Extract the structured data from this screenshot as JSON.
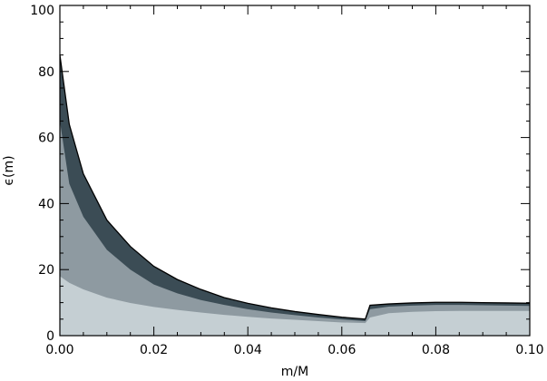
{
  "chart_data": {
    "type": "area",
    "xlabel": "m/M",
    "ylabel": "ϵ(m)",
    "xlim": [
      0,
      0.1
    ],
    "ylim": [
      0,
      100
    ],
    "x_ticks": [
      "0.00",
      "0.02",
      "0.04",
      "0.06",
      "0.08",
      "0.10"
    ],
    "x_tick_values": [
      0,
      0.02,
      0.04,
      0.06,
      0.08,
      0.1
    ],
    "y_ticks": [
      "0",
      "20",
      "40",
      "60",
      "80",
      "100"
    ],
    "y_tick_values": [
      0,
      20,
      40,
      60,
      80,
      100
    ],
    "grid": false,
    "x": [
      0,
      0.002,
      0.005,
      0.01,
      0.015,
      0.02,
      0.025,
      0.03,
      0.035,
      0.04,
      0.045,
      0.05,
      0.055,
      0.06,
      0.065,
      0.066,
      0.07,
      0.075,
      0.08,
      0.085,
      0.09,
      0.095,
      0.1
    ],
    "series": [
      {
        "color": "#3b4c55",
        "values": [
          85,
          64,
          49,
          35,
          27,
          21,
          17,
          14,
          11.5,
          9.8,
          8.4,
          7.3,
          6.4,
          5.6,
          5.0,
          9.2,
          9.6,
          9.9,
          10.1,
          10.1,
          10.0,
          9.9,
          9.8
        ]
      },
      {
        "color": "#8e9aa1",
        "values": [
          65,
          46,
          36,
          26,
          20,
          15.5,
          12.8,
          10.8,
          9.3,
          8.0,
          7.0,
          6.2,
          5.5,
          4.9,
          4.4,
          8.0,
          8.8,
          9.1,
          9.3,
          9.3,
          9.2,
          9.1,
          9.0
        ]
      },
      {
        "color": "#c5cfd3",
        "values": [
          18,
          16,
          14,
          11.5,
          9.9,
          8.7,
          7.8,
          7.0,
          6.3,
          5.7,
          5.2,
          4.8,
          4.4,
          4.0,
          3.8,
          5.5,
          6.8,
          7.2,
          7.4,
          7.5,
          7.5,
          7.5,
          7.5
        ]
      }
    ]
  }
}
